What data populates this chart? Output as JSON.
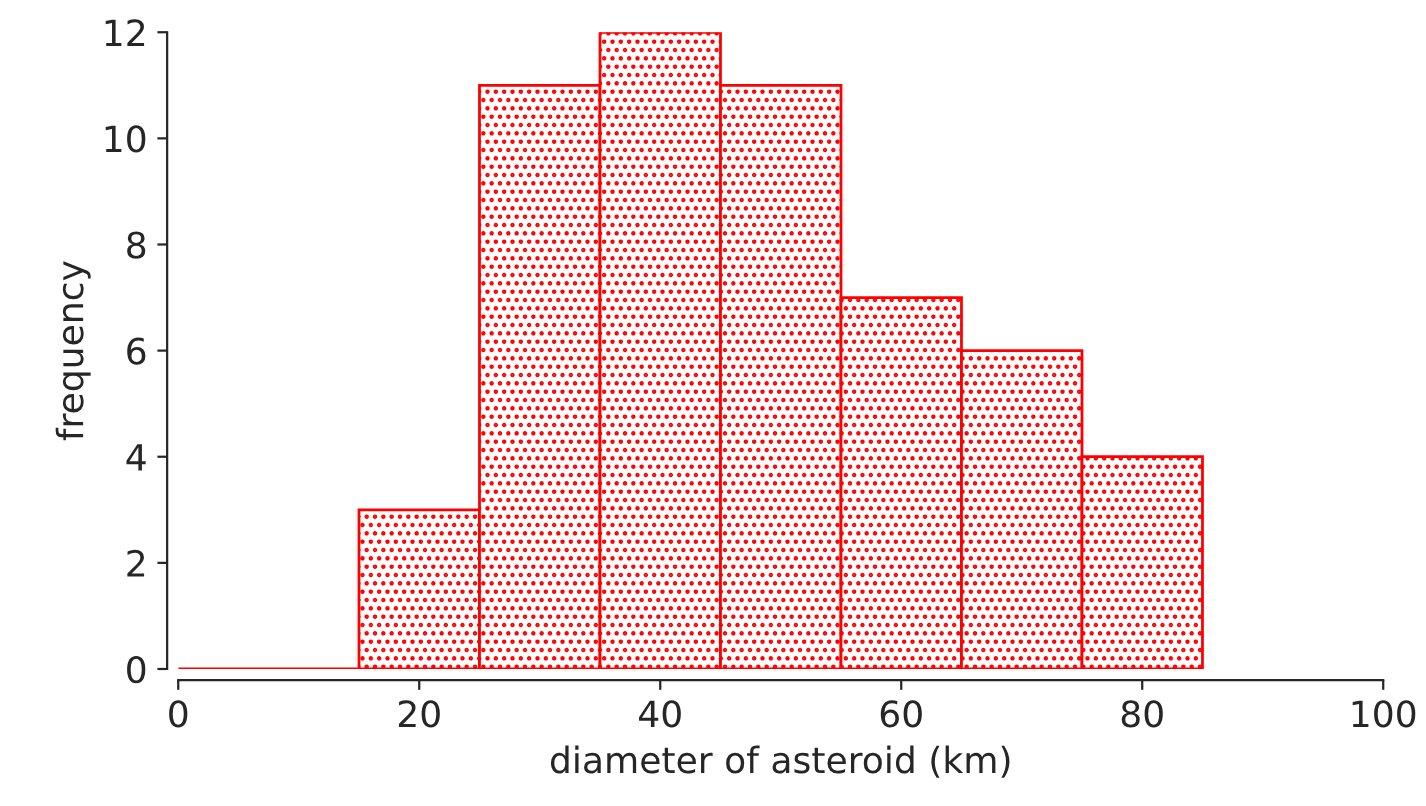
{
  "chart_data": {
    "type": "histogram",
    "xlabel": "diameter of asteroid (km)",
    "ylabel": "frequency",
    "bins": [
      0,
      15,
      25,
      35,
      45,
      55,
      65,
      75,
      85
    ],
    "values": [
      0,
      3,
      11,
      12,
      11,
      7,
      6,
      4
    ],
    "color": "#ff0000",
    "xlim": [
      0,
      100
    ],
    "xticks": [
      0,
      20,
      40,
      60,
      80,
      100
    ],
    "ylim": [
      0,
      12
    ],
    "yticks": [
      0,
      2,
      4,
      6,
      8,
      10,
      12
    ],
    "grid": false
  }
}
